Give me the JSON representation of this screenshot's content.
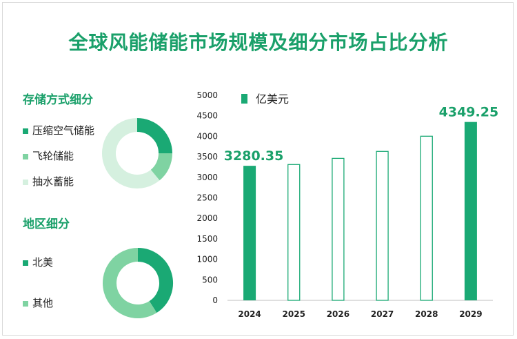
{
  "title": "全球风能储能市场规模及细分市场占比分析",
  "storage": {
    "title": "存储方式细分",
    "items": [
      {
        "label": "压缩空气储能",
        "value": 25,
        "color": "#1aa974"
      },
      {
        "label": "飞轮储能",
        "value": 14,
        "color": "#7fd3a2"
      },
      {
        "label": "抽水蓄能",
        "value": 61,
        "color": "#d5f0df"
      }
    ]
  },
  "region": {
    "title": "地区细分",
    "items": [
      {
        "label": "北美",
        "value": 41,
        "color": "#1aa974"
      },
      {
        "label": "其他",
        "value": 59,
        "color": "#7fd3a2"
      }
    ]
  },
  "chart_data": {
    "type": "bar",
    "categories": [
      "2024",
      "2025",
      "2026",
      "2027",
      "2028",
      "2029"
    ],
    "series": [
      {
        "name": "亿美元",
        "values": [
          3280.35,
          3320,
          3470,
          3640,
          4010,
          4349.25
        ]
      }
    ],
    "data_labels": [
      "3280.35",
      "",
      "",
      "",
      "",
      "4349.25"
    ],
    "filled": [
      true,
      false,
      false,
      false,
      false,
      true
    ],
    "ylim": [
      0,
      5000
    ],
    "yticks": [
      "0",
      "500",
      "1000",
      "1500",
      "2000",
      "2500",
      "3000",
      "3500",
      "4000",
      "4500",
      "5000"
    ],
    "bar_color": "#1aa974"
  }
}
